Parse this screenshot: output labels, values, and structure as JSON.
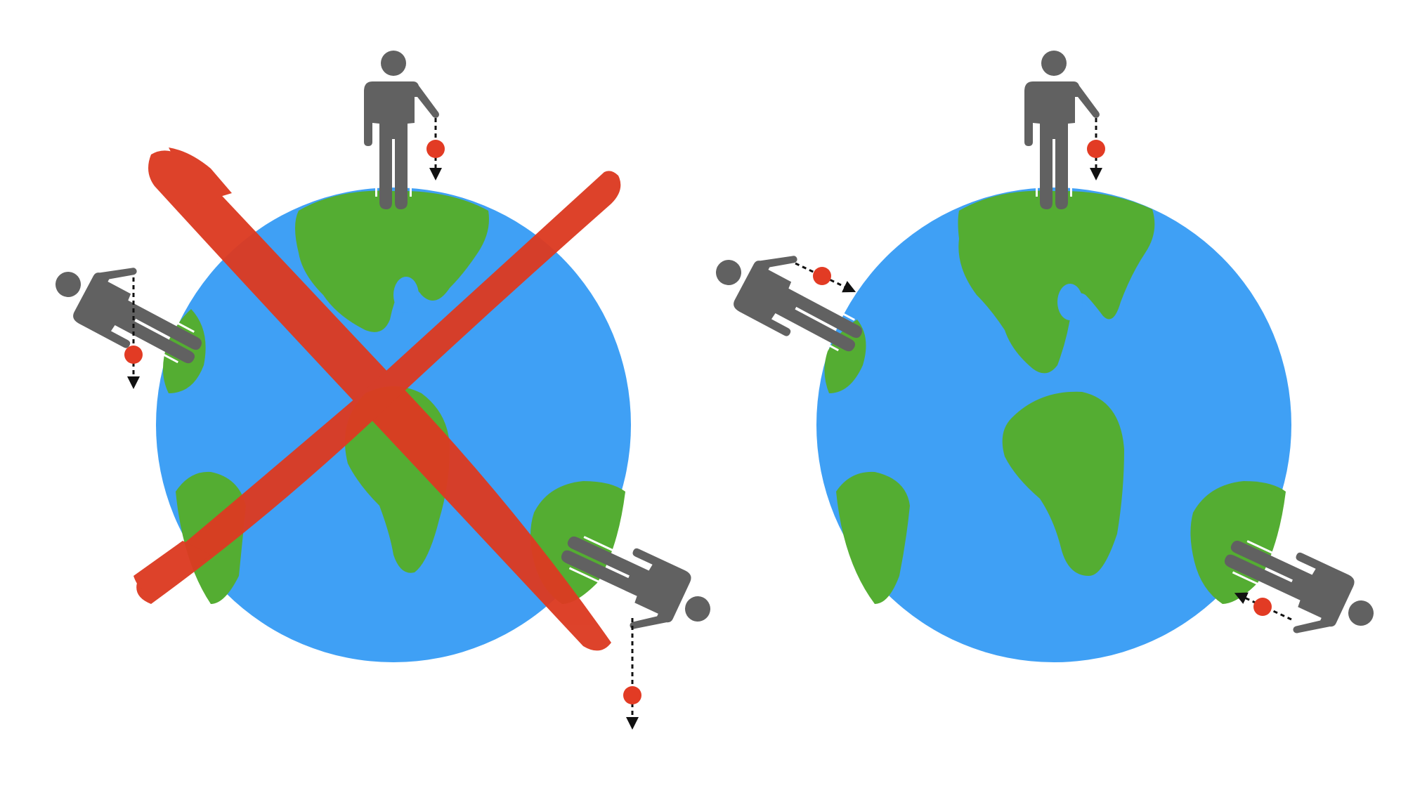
{
  "colors": {
    "ocean": "#3fa0f5",
    "land": "#54ad32",
    "person": "#616161",
    "ball": "#e23b24",
    "arrow": "#111111",
    "cross": "#dc3b22",
    "background": "#ffffff"
  },
  "panels": [
    {
      "id": "incorrect-gravity",
      "crossed_out": true,
      "people": [
        {
          "position": "top",
          "ball_falls": "down-screen"
        },
        {
          "position": "left",
          "ball_falls": "down-screen"
        },
        {
          "position": "lower-right",
          "ball_falls": "down-screen"
        }
      ]
    },
    {
      "id": "correct-gravity",
      "crossed_out": false,
      "people": [
        {
          "position": "top",
          "ball_falls": "toward-earth-center"
        },
        {
          "position": "left",
          "ball_falls": "toward-earth-center"
        },
        {
          "position": "lower-right",
          "ball_falls": "toward-earth-center"
        }
      ]
    }
  ],
  "icons": {
    "earth": "earth-globe-icon",
    "person": "standing-person-icon",
    "ball": "falling-ball-icon",
    "cross": "red-cross-mark-icon"
  }
}
